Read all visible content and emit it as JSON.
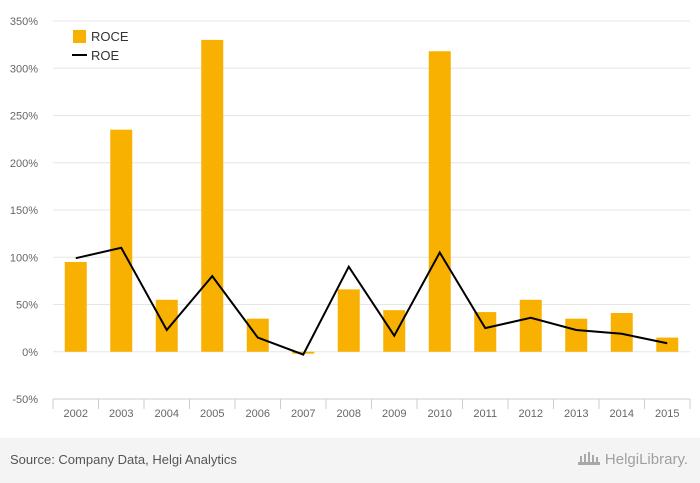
{
  "chart_data": {
    "type": "bar+line",
    "categories": [
      "2002",
      "2003",
      "2004",
      "2005",
      "2006",
      "2007",
      "2008",
      "2009",
      "2010",
      "2011",
      "2012",
      "2013",
      "2014",
      "2015"
    ],
    "series": [
      {
        "name": "ROCE",
        "type": "bar",
        "color": "#f8b100",
        "values": [
          95,
          235,
          55,
          330,
          35,
          -2,
          66,
          44,
          318,
          42,
          55,
          35,
          41,
          15
        ]
      },
      {
        "name": "ROE",
        "type": "line",
        "color": "#000000",
        "values": [
          99,
          110,
          23,
          80,
          15,
          -3,
          90,
          17,
          105,
          25,
          36,
          23,
          19,
          9
        ]
      }
    ],
    "ylim": [
      -50,
      350
    ],
    "yticks": [
      -50,
      0,
      50,
      100,
      150,
      200,
      250,
      300,
      350
    ],
    "ytick_labels": [
      "-50%",
      "0%",
      "50%",
      "100%",
      "150%",
      "200%",
      "250%",
      "300%",
      "350%"
    ],
    "legend_position": "top-left",
    "grid": true
  },
  "footer": {
    "source": "Source: Company Data, Helgi Analytics",
    "brand": "HelgiLibrary."
  },
  "colors": {
    "bar": "#f8b100",
    "line": "#000000",
    "grid": "#e6e6e6",
    "axis_text": "#666666"
  }
}
